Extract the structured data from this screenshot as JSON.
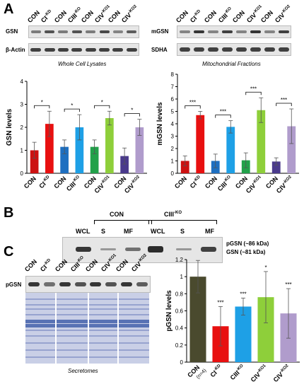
{
  "panels": {
    "a": "A",
    "b": "B",
    "c": "C"
  },
  "panel_a_left": {
    "lanes": [
      {
        "base": "CON",
        "sup": ""
      },
      {
        "base": "CI",
        "sup": "-KD"
      },
      {
        "base": "CON",
        "sup": ""
      },
      {
        "base": "CIII",
        "sup": "-KO"
      },
      {
        "base": "CON",
        "sup": ""
      },
      {
        "base": "CIV",
        "sup": "-KO1"
      },
      {
        "base": "CON",
        "sup": ""
      },
      {
        "base": "CIV",
        "sup": "-KO2"
      }
    ],
    "row_labels": [
      "GSN",
      "β-Actin"
    ],
    "caption": "Whole Cell Lysates"
  },
  "panel_a_right": {
    "lanes": [
      {
        "base": "CON",
        "sup": ""
      },
      {
        "base": "CI",
        "sup": "-KD"
      },
      {
        "base": "CON",
        "sup": ""
      },
      {
        "base": "CIII",
        "sup": "-KO"
      },
      {
        "base": "CON",
        "sup": ""
      },
      {
        "base": "CIV",
        "sup": "-KO1"
      },
      {
        "base": "CON",
        "sup": ""
      },
      {
        "base": "CIV",
        "sup": "-KO2"
      }
    ],
    "row_labels": [
      "mGSN",
      "SDHA"
    ],
    "caption": "Mitochondrial Fractions"
  },
  "panel_b": {
    "group_labels": [
      {
        "base": "CON",
        "sup": ""
      },
      {
        "base": "CIII",
        "sup": "-KO"
      }
    ],
    "lanes": [
      "WCL",
      "S",
      "MF",
      "WCL",
      "S",
      "MF"
    ],
    "band_labels": [
      "pGSN (~86 kDa)",
      "GSN (~81 kDa)"
    ]
  },
  "panel_c_blot": {
    "lanes": [
      {
        "base": "CON",
        "sup": ""
      },
      {
        "base": "CI",
        "sup": "-KD"
      },
      {
        "base": "CON",
        "sup": ""
      },
      {
        "base": "CIII",
        "sup": "-KO"
      },
      {
        "base": "CON",
        "sup": ""
      },
      {
        "base": "CIV",
        "sup": "-KO1"
      },
      {
        "base": "CON",
        "sup": ""
      },
      {
        "base": "CIV",
        "sup": "-KO2"
      }
    ],
    "row_label": "pGSN",
    "caption": "Secretomes"
  },
  "colors": {
    "con": "#cc1111",
    "ci": "#e81010",
    "ciii": "#1ea0e6",
    "civ1": "#8ecf3a",
    "civ2": "#b09ccc",
    "con_c": "#4a4a2e",
    "blue_con": "#1e6fc0",
    "green_con": "#22a14a",
    "purple_con": "#4a3a8c"
  },
  "chart_data": [
    {
      "type": "bar",
      "ylabel": "GSN levels",
      "ylim": [
        0,
        4
      ],
      "yticks": [
        0,
        1,
        2,
        3,
        4
      ],
      "categories": [
        "CON",
        "CI-KD",
        "CON",
        "CIII-KO",
        "CON",
        "CIV-KO1",
        "CON",
        "CIV-KO2"
      ],
      "category_labels": [
        {
          "base": "CON",
          "sup": ""
        },
        {
          "base": "CI",
          "sup": "-KD"
        },
        {
          "base": "CON",
          "sup": ""
        },
        {
          "base": "CIII",
          "sup": "-KO"
        },
        {
          "base": "CON",
          "sup": ""
        },
        {
          "base": "CIV",
          "sup": "-KO1"
        },
        {
          "base": "CON",
          "sup": ""
        },
        {
          "base": "CIV",
          "sup": "-KO2"
        }
      ],
      "values": [
        1.0,
        2.15,
        1.15,
        2.0,
        1.15,
        2.4,
        0.75,
        2.0
      ],
      "errors": [
        0.35,
        0.55,
        0.3,
        0.55,
        0.3,
        0.3,
        0.35,
        0.35
      ],
      "bar_colors": [
        "#cc1111",
        "#e81010",
        "#1e6fc0",
        "#1ea0e6",
        "#22a14a",
        "#8ecf3a",
        "#4a3a8c",
        "#b09ccc"
      ],
      "significance": [
        {
          "pair": [
            0,
            1
          ],
          "label": "*"
        },
        {
          "pair": [
            2,
            3
          ],
          "label": "*"
        },
        {
          "pair": [
            4,
            5
          ],
          "label": "*"
        },
        {
          "pair": [
            6,
            7
          ],
          "label": "*"
        }
      ]
    },
    {
      "type": "bar",
      "ylabel": "mGSN levels",
      "ylim": [
        0,
        8
      ],
      "yticks": [
        0,
        1,
        2,
        3,
        4,
        5,
        6,
        7,
        8
      ],
      "categories": [
        "CON",
        "CI-KD",
        "CON",
        "CIII-KO",
        "CON",
        "CIV-KO1",
        "CON",
        "CIV-KO2"
      ],
      "category_labels": [
        {
          "base": "CON",
          "sup": ""
        },
        {
          "base": "CI",
          "sup": "-KD"
        },
        {
          "base": "CON",
          "sup": ""
        },
        {
          "base": "CIII",
          "sup": "-KO"
        },
        {
          "base": "CON",
          "sup": ""
        },
        {
          "base": "CIV",
          "sup": "-KO1"
        },
        {
          "base": "CON",
          "sup": ""
        },
        {
          "base": "CIV",
          "sup": "-KO2"
        }
      ],
      "values": [
        1.0,
        4.7,
        1.0,
        3.75,
        1.05,
        5.1,
        0.95,
        3.8
      ],
      "errors": [
        0.4,
        0.3,
        0.55,
        0.5,
        0.6,
        1.0,
        0.3,
        1.4
      ],
      "bar_colors": [
        "#cc1111",
        "#e81010",
        "#1e6fc0",
        "#1ea0e6",
        "#22a14a",
        "#8ecf3a",
        "#4a3a8c",
        "#b09ccc"
      ],
      "significance": [
        {
          "pair": [
            0,
            1
          ],
          "label": "***"
        },
        {
          "pair": [
            2,
            3
          ],
          "label": "***"
        },
        {
          "pair": [
            4,
            5
          ],
          "label": "***"
        },
        {
          "pair": [
            6,
            7
          ],
          "label": "***"
        }
      ]
    },
    {
      "type": "bar",
      "ylabel": "pGSN levels",
      "ylim": [
        0,
        1.2
      ],
      "yticks": [
        0,
        0.2,
        0.4,
        0.6,
        0.8,
        1,
        1.2
      ],
      "categories": [
        "CON (n=4)",
        "CI-KD",
        "CIII-KO",
        "CIV-KO1",
        "CIV-KO2"
      ],
      "category_labels": [
        {
          "base": "CON",
          "sup": "",
          "sub": "(n=4)"
        },
        {
          "base": "CI",
          "sup": "-KD",
          "sub": ""
        },
        {
          "base": "CIII",
          "sup": "-KO",
          "sub": ""
        },
        {
          "base": "CIV",
          "sup": "-KO1",
          "sub": ""
        },
        {
          "base": "CIV",
          "sup": "-KO2",
          "sub": ""
        }
      ],
      "values": [
        1.0,
        0.42,
        0.65,
        0.76,
        0.57
      ],
      "errors": [
        0.19,
        0.23,
        0.1,
        0.3,
        0.29
      ],
      "bar_colors": [
        "#4a4a2e",
        "#e81010",
        "#1ea0e6",
        "#8ecf3a",
        "#b09ccc"
      ],
      "significance_labels": [
        "",
        "***",
        "***",
        "*",
        "***"
      ]
    }
  ]
}
